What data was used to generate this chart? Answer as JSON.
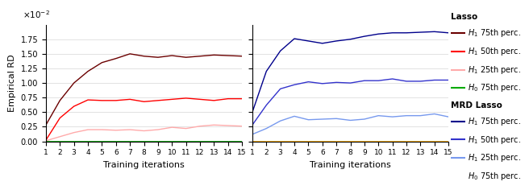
{
  "x": [
    1,
    2,
    3,
    4,
    5,
    6,
    7,
    8,
    9,
    10,
    11,
    12,
    13,
    14,
    15
  ],
  "lasso_h1_75": [
    0.28,
    0.7,
    1.0,
    1.2,
    1.35,
    1.42,
    1.5,
    1.46,
    1.44,
    1.47,
    1.44,
    1.46,
    1.48,
    1.47,
    1.46
  ],
  "lasso_h1_50": [
    0.02,
    0.4,
    0.6,
    0.71,
    0.7,
    0.7,
    0.72,
    0.68,
    0.7,
    0.72,
    0.74,
    0.72,
    0.7,
    0.73,
    0.73
  ],
  "lasso_h1_25": [
    0.01,
    0.08,
    0.15,
    0.2,
    0.2,
    0.19,
    0.2,
    0.18,
    0.2,
    0.24,
    0.22,
    0.26,
    0.28,
    0.27,
    0.26
  ],
  "lasso_h0_75": [
    0.0,
    0.0,
    0.0,
    0.0,
    0.0,
    0.0,
    0.0,
    0.0,
    0.0,
    0.0,
    0.0,
    0.0,
    0.0,
    0.0,
    0.0
  ],
  "mrd_h1_75": [
    0.5,
    1.2,
    1.55,
    1.76,
    1.72,
    1.68,
    1.72,
    1.75,
    1.8,
    1.84,
    1.86,
    1.86,
    1.87,
    1.88,
    1.86
  ],
  "mrd_h1_50": [
    0.28,
    0.62,
    0.9,
    0.97,
    1.02,
    0.99,
    1.01,
    1.0,
    1.04,
    1.04,
    1.07,
    1.03,
    1.03,
    1.05,
    1.05
  ],
  "mrd_h1_25": [
    0.12,
    0.22,
    0.35,
    0.43,
    0.37,
    0.38,
    0.39,
    0.36,
    0.38,
    0.44,
    0.42,
    0.44,
    0.44,
    0.47,
    0.42
  ],
  "mrd_h0_75": [
    0.0,
    0.0,
    0.0,
    0.0,
    0.0,
    0.0,
    0.0,
    0.0,
    0.0,
    0.0,
    0.0,
    0.0,
    0.0,
    0.0,
    0.0
  ],
  "lasso_h1_75_color": "#6b0000",
  "lasso_h1_50_color": "#ff0000",
  "lasso_h1_25_color": "#ffaaaa",
  "lasso_h0_75_color": "#00aa00",
  "mrd_h1_75_color": "#00008b",
  "mrd_h1_50_color": "#3333cc",
  "mrd_h1_25_color": "#7799ee",
  "mrd_h0_75_color": "#ffaa00",
  "ylabel": "Empirical RD",
  "xlabel": "Training iterations",
  "ylim_max": 0.02,
  "ytick_vals": [
    0.0,
    0.0025,
    0.005,
    0.0075,
    0.01,
    0.0125,
    0.015,
    0.0175
  ],
  "ytick_labels": [
    "0.00",
    "0.25",
    "0.50",
    "0.75",
    "1.00",
    "1.25",
    "1.50",
    "1.75"
  ],
  "legend_lasso_title": "Lasso",
  "legend_mrd_title": "MRD Lasso",
  "legend_h1_75": "$H_1$ 75th perc.",
  "legend_h1_50": "$H_1$ 50th perc.",
  "legend_h1_25": "$H_1$ 25th perc.",
  "legend_h0_75": "$H_0$ 75th perc."
}
